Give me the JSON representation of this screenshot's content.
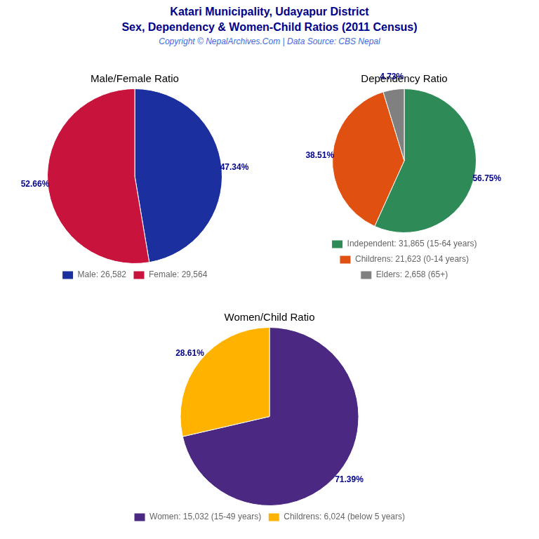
{
  "title": "Katari Municipality, Udayapur District",
  "subtitle": "Sex, Dependency & Women-Child Ratios (2011 Census)",
  "annotations": [
    "Copyright © NepalArchives.Com | Data Source: CBS Nepal"
  ],
  "chart_data": [
    {
      "type": "pie",
      "title": "Male/Female Ratio",
      "categories": [
        "Male: 26,582",
        "Female: 29,564"
      ],
      "values": [
        47.34,
        52.66
      ],
      "value_labels": [
        "47.34%",
        "52.66%"
      ],
      "colors": [
        "#1C2F9E",
        "#C8143C"
      ],
      "data_labels": true,
      "legend": "bottom"
    },
    {
      "type": "pie",
      "title": "Dependency Ratio",
      "categories": [
        "Independent: 31,865 (15-64 years)",
        "Childrens: 21,623 (0-14 years)",
        "Elders: 2,658 (65+)"
      ],
      "values": [
        56.75,
        38.51,
        4.73
      ],
      "value_labels": [
        "56.75%",
        "38.51%",
        "4.73%"
      ],
      "colors": [
        "#2E8B57",
        "#E05010",
        "#808080"
      ],
      "data_labels": true,
      "legend": "bottom"
    },
    {
      "type": "pie",
      "title": "Women/Child Ratio",
      "categories": [
        "Women: 15,032 (15-49 years)",
        "Childrens: 6,024 (below 5 years)"
      ],
      "values": [
        71.39,
        28.61
      ],
      "value_labels": [
        "71.39%",
        "28.61%"
      ],
      "colors": [
        "#4B2882",
        "#FFB300"
      ],
      "data_labels": true,
      "legend": "bottom"
    }
  ]
}
